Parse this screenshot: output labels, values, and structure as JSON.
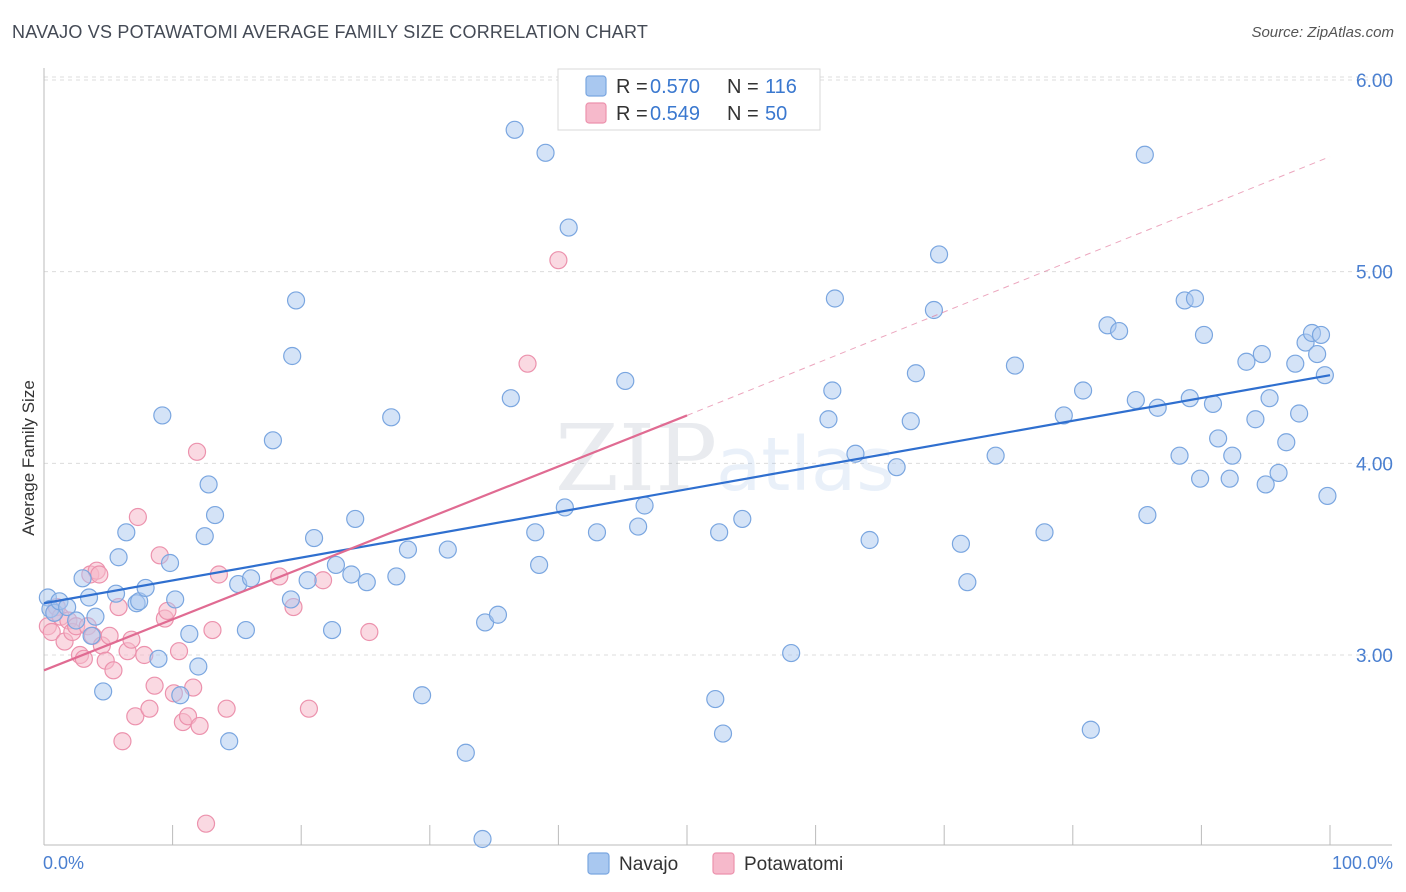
{
  "title": "NAVAJO VS POTAWATOMI AVERAGE FAMILY SIZE CORRELATION CHART",
  "source": "Source: ZipAtlas.com",
  "watermark": {
    "zip": "ZIP",
    "atlas": "atlas"
  },
  "colors": {
    "navajo_fill": "#a9c8f0",
    "navajo_stroke": "#7aa6e0",
    "navajo_line": "#2f6fcf",
    "potawatomi_fill": "#f6b9cb",
    "potawatomi_stroke": "#ec92ad",
    "potawatomi_line": "#e06b92",
    "tick": "#4a7fd0"
  },
  "legend": {
    "r_label": "R =",
    "n_label": "N =",
    "items": [
      {
        "r": "0.570",
        "n": "116"
      },
      {
        "r": "0.549",
        "n": "50"
      }
    ]
  },
  "chart_data": {
    "type": "scatter",
    "title": "NAVAJO VS POTAWATOMI AVERAGE FAMILY SIZE CORRELATION CHART",
    "xlabel": "",
    "ylabel": "Average Family Size",
    "x_tick_labels": [
      "0.0%",
      "100.0%"
    ],
    "y_tick_labels": [
      "3.00",
      "4.00",
      "5.00",
      "6.00"
    ],
    "y_ticks": [
      3,
      4,
      5,
      6
    ],
    "xlim": [
      0,
      100
    ],
    "ylim": [
      2.0,
      6.1
    ],
    "legend_position": "top-center",
    "grid": true,
    "series": [
      {
        "name": "Navajo",
        "trend": {
          "x": [
            0,
            100
          ],
          "y": [
            3.27,
            4.46
          ]
        },
        "points": [
          [
            0.3,
            3.3
          ],
          [
            0.5,
            3.24
          ],
          [
            0.8,
            3.22
          ],
          [
            1.2,
            3.28
          ],
          [
            1.8,
            3.25
          ],
          [
            2.5,
            3.18
          ],
          [
            3,
            3.4
          ],
          [
            3.5,
            3.3
          ],
          [
            3.7,
            3.1
          ],
          [
            4,
            3.2
          ],
          [
            4.6,
            2.81
          ],
          [
            5.6,
            3.32
          ],
          [
            5.8,
            3.51
          ],
          [
            6.4,
            3.64
          ],
          [
            7.2,
            3.27
          ],
          [
            7.4,
            3.28
          ],
          [
            7.9,
            3.35
          ],
          [
            8.9,
            2.98
          ],
          [
            9.2,
            4.25
          ],
          [
            9.8,
            3.48
          ],
          [
            10.2,
            3.29
          ],
          [
            10.6,
            2.79
          ],
          [
            11.3,
            3.11
          ],
          [
            12,
            2.94
          ],
          [
            12.5,
            3.62
          ],
          [
            12.8,
            3.89
          ],
          [
            13.3,
            3.73
          ],
          [
            14.4,
            2.55
          ],
          [
            15.1,
            3.37
          ],
          [
            15.7,
            3.13
          ],
          [
            16.1,
            3.4
          ],
          [
            17.8,
            4.12
          ],
          [
            19.2,
            3.29
          ],
          [
            19.3,
            4.56
          ],
          [
            19.6,
            4.85
          ],
          [
            20.5,
            3.39
          ],
          [
            21,
            3.61
          ],
          [
            22.4,
            3.13
          ],
          [
            22.7,
            3.47
          ],
          [
            23.9,
            3.42
          ],
          [
            24.2,
            3.71
          ],
          [
            25.1,
            3.38
          ],
          [
            27,
            4.24
          ],
          [
            27.4,
            3.41
          ],
          [
            28.3,
            3.55
          ],
          [
            29.4,
            2.79
          ],
          [
            31.4,
            3.55
          ],
          [
            32.8,
            2.49
          ],
          [
            34.1,
            2.04
          ],
          [
            34.3,
            3.17
          ],
          [
            35.3,
            3.21
          ],
          [
            36.3,
            4.34
          ],
          [
            36.6,
            5.74
          ],
          [
            38.2,
            3.64
          ],
          [
            38.5,
            3.47
          ],
          [
            39,
            5.62
          ],
          [
            40.5,
            3.77
          ],
          [
            40.8,
            5.23
          ],
          [
            43,
            3.64
          ],
          [
            45.2,
            4.43
          ],
          [
            46.2,
            3.67
          ],
          [
            46.7,
            3.78
          ],
          [
            52.2,
            2.77
          ],
          [
            52.5,
            3.64
          ],
          [
            52.8,
            2.59
          ],
          [
            54.3,
            3.71
          ],
          [
            58.1,
            3.01
          ],
          [
            61,
            4.23
          ],
          [
            61.3,
            4.38
          ],
          [
            61.5,
            4.86
          ],
          [
            63.1,
            4.05
          ],
          [
            64.2,
            3.6
          ],
          [
            66.3,
            3.98
          ],
          [
            67.4,
            4.22
          ],
          [
            67.8,
            4.47
          ],
          [
            69.2,
            4.8
          ],
          [
            69.6,
            5.09
          ],
          [
            71.3,
            3.58
          ],
          [
            71.8,
            3.38
          ],
          [
            74,
            4.04
          ],
          [
            75.5,
            4.51
          ],
          [
            77.8,
            3.64
          ],
          [
            79.3,
            4.25
          ],
          [
            80.8,
            4.38
          ],
          [
            81.4,
            2.61
          ],
          [
            82.7,
            4.72
          ],
          [
            83.6,
            4.69
          ],
          [
            84.9,
            4.33
          ],
          [
            85.6,
            5.61
          ],
          [
            85.8,
            3.73
          ],
          [
            86.6,
            4.29
          ],
          [
            88.3,
            4.04
          ],
          [
            88.7,
            4.85
          ],
          [
            89.1,
            4.34
          ],
          [
            89.5,
            4.86
          ],
          [
            89.9,
            3.92
          ],
          [
            90.2,
            4.67
          ],
          [
            90.9,
            4.31
          ],
          [
            91.3,
            4.13
          ],
          [
            92.2,
            3.92
          ],
          [
            92.4,
            4.04
          ],
          [
            93.5,
            4.53
          ],
          [
            94.2,
            4.23
          ],
          [
            94.7,
            4.57
          ],
          [
            95,
            3.89
          ],
          [
            95.3,
            4.34
          ],
          [
            96,
            3.95
          ],
          [
            96.6,
            4.11
          ],
          [
            97.3,
            4.52
          ],
          [
            97.6,
            4.26
          ],
          [
            98.1,
            4.63
          ],
          [
            98.6,
            4.68
          ],
          [
            99,
            4.57
          ],
          [
            99.3,
            4.67
          ],
          [
            99.6,
            4.46
          ],
          [
            99.8,
            3.83
          ]
        ]
      },
      {
        "name": "Potawatomi",
        "trend": {
          "x": [
            0,
            50
          ],
          "y": [
            2.92,
            4.25
          ]
        },
        "trend_extension": {
          "x": [
            50,
            100
          ],
          "y": [
            4.25,
            5.6
          ]
        },
        "points": [
          [
            0.3,
            3.15
          ],
          [
            0.6,
            3.12
          ],
          [
            0.8,
            3.22
          ],
          [
            1,
            3.25
          ],
          [
            1.3,
            3.2
          ],
          [
            1.6,
            3.07
          ],
          [
            1.9,
            3.18
          ],
          [
            2.2,
            3.12
          ],
          [
            2.5,
            3.15
          ],
          [
            2.8,
            3.0
          ],
          [
            3.1,
            2.98
          ],
          [
            3.4,
            3.15
          ],
          [
            3.6,
            3.42
          ],
          [
            3.8,
            3.1
          ],
          [
            4.1,
            3.44
          ],
          [
            4.3,
            3.42
          ],
          [
            4.5,
            3.05
          ],
          [
            4.8,
            2.97
          ],
          [
            5.1,
            3.1
          ],
          [
            5.4,
            2.92
          ],
          [
            5.8,
            3.25
          ],
          [
            6.1,
            2.55
          ],
          [
            6.5,
            3.02
          ],
          [
            6.8,
            3.08
          ],
          [
            7.1,
            2.68
          ],
          [
            7.3,
            3.72
          ],
          [
            7.8,
            3.0
          ],
          [
            8.2,
            2.72
          ],
          [
            8.6,
            2.84
          ],
          [
            9,
            3.52
          ],
          [
            9.4,
            3.19
          ],
          [
            9.6,
            3.23
          ],
          [
            10.1,
            2.8
          ],
          [
            10.5,
            3.02
          ],
          [
            10.8,
            2.65
          ],
          [
            11.2,
            2.68
          ],
          [
            11.6,
            2.83
          ],
          [
            11.9,
            4.06
          ],
          [
            12.1,
            2.63
          ],
          [
            12.6,
            2.12
          ],
          [
            13.1,
            3.13
          ],
          [
            13.6,
            3.42
          ],
          [
            14.2,
            2.72
          ],
          [
            18.3,
            3.41
          ],
          [
            19.4,
            3.25
          ],
          [
            20.6,
            2.72
          ],
          [
            21.7,
            3.39
          ],
          [
            25.3,
            3.12
          ],
          [
            40,
            5.06
          ],
          [
            37.6,
            4.52
          ]
        ]
      }
    ]
  }
}
